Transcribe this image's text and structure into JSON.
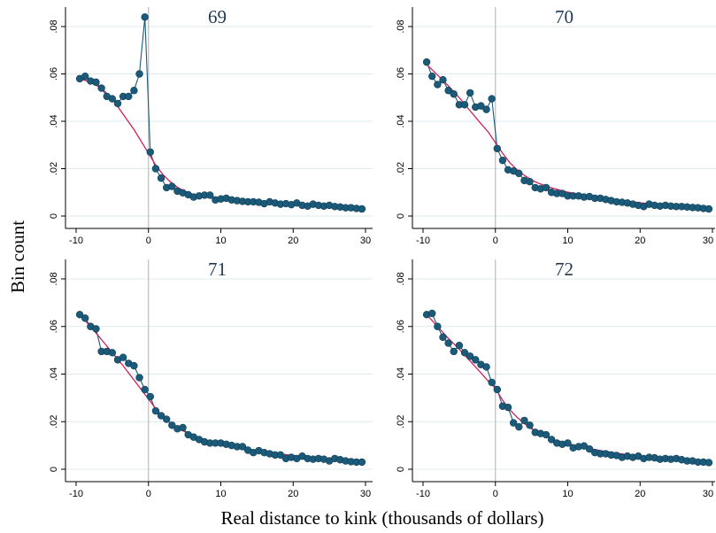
{
  "figure": {
    "xlabel": "Real distance to kink (thousands of dollars)",
    "ylabel": "Bin count",
    "colors": {
      "data": "#1c5a7a",
      "fit": "#d0205a",
      "kink": "#bdbdbd",
      "grid": "#dfe8ec",
      "title": "#1f3b57"
    }
  },
  "chart_data": [
    {
      "type": "line",
      "title": "69",
      "xlim": [
        -10,
        30
      ],
      "ylim": [
        0,
        0.08
      ],
      "xticks": [
        "-10",
        "0",
        "10",
        "20",
        "30"
      ],
      "yticks": [
        "0",
        ".02",
        ".04",
        ".06",
        ".08"
      ],
      "kink_x": 0,
      "series": [
        {
          "kind": "scatter-connected",
          "x": [
            -9.5,
            -8.75,
            -8,
            -7.25,
            -6.5,
            -5.75,
            -5,
            -4.25,
            -3.5,
            -2.75,
            -2,
            -1.25,
            -0.5,
            0.25,
            1,
            1.75,
            2.5,
            3.25,
            4,
            4.75,
            5.5,
            6.25,
            7,
            7.75,
            8.5,
            9.25,
            10,
            10.75,
            11.5,
            12.25,
            13,
            13.75,
            14.5,
            15.25,
            16,
            16.75,
            17.5,
            18.25,
            19,
            19.75,
            20.5,
            21.25,
            22,
            22.75,
            23.5,
            24.25,
            25,
            25.75,
            26.5,
            27.25,
            28,
            28.75,
            29.5
          ],
          "y": [
            0.058,
            0.059,
            0.057,
            0.0565,
            0.054,
            0.0505,
            0.0495,
            0.0475,
            0.0505,
            0.0505,
            0.053,
            0.06,
            0.084,
            0.027,
            0.02,
            0.016,
            0.012,
            0.0125,
            0.0105,
            0.0098,
            0.009,
            0.008,
            0.0085,
            0.0088,
            0.0088,
            0.0068,
            0.0072,
            0.0075,
            0.0068,
            0.0065,
            0.0062,
            0.006,
            0.006,
            0.0058,
            0.0052,
            0.006,
            0.0055,
            0.005,
            0.0052,
            0.0048,
            0.0055,
            0.0045,
            0.0042,
            0.005,
            0.0045,
            0.0042,
            0.0045,
            0.004,
            0.0038,
            0.0035,
            0.0035,
            0.0032,
            0.003
          ]
        },
        {
          "kind": "fit",
          "x": [
            -9.5,
            -8,
            -6.5,
            -5,
            -3.5,
            -2,
            -1,
            0,
            1,
            2,
            3,
            4,
            5,
            6,
            8,
            10,
            12,
            14,
            16,
            18,
            20,
            22,
            24,
            26,
            28,
            29.5
          ],
          "y": [
            0.058,
            0.0565,
            0.054,
            0.0495,
            0.043,
            0.0365,
            0.0315,
            0.0265,
            0.0215,
            0.0175,
            0.0145,
            0.0122,
            0.0105,
            0.0093,
            0.0079,
            0.0071,
            0.0066,
            0.0061,
            0.0056,
            0.0051,
            0.0047,
            0.0043,
            0.0039,
            0.0035,
            0.0032,
            0.003
          ]
        }
      ]
    },
    {
      "type": "line",
      "title": "70",
      "xlim": [
        -10,
        30
      ],
      "ylim": [
        0,
        0.08
      ],
      "xticks": [
        "-10",
        "0",
        "10",
        "20",
        "30"
      ],
      "yticks": [
        "0",
        ".02",
        ".04",
        ".06",
        ".08"
      ],
      "kink_x": 0,
      "series": [
        {
          "kind": "scatter-connected",
          "x": [
            -9.5,
            -8.75,
            -8,
            -7.25,
            -6.5,
            -5.75,
            -5,
            -4.25,
            -3.5,
            -2.75,
            -2,
            -1.25,
            -0.5,
            0.25,
            1,
            1.75,
            2.5,
            3.25,
            4,
            4.75,
            5.5,
            6.25,
            7,
            7.75,
            8.5,
            9.25,
            10,
            10.75,
            11.5,
            12.25,
            13,
            13.75,
            14.5,
            15.25,
            16,
            16.75,
            17.5,
            18.25,
            19,
            19.75,
            20.5,
            21.25,
            22,
            22.75,
            23.5,
            24.25,
            25,
            25.75,
            26.5,
            27.25,
            28,
            28.75,
            29.5
          ],
          "y": [
            0.065,
            0.059,
            0.0555,
            0.0575,
            0.053,
            0.0515,
            0.047,
            0.047,
            0.052,
            0.046,
            0.0465,
            0.045,
            0.0495,
            0.0285,
            0.0235,
            0.0195,
            0.019,
            0.018,
            0.015,
            0.0145,
            0.012,
            0.0115,
            0.012,
            0.01,
            0.0095,
            0.0095,
            0.0085,
            0.0085,
            0.0085,
            0.008,
            0.0082,
            0.0075,
            0.0075,
            0.007,
            0.0065,
            0.006,
            0.0058,
            0.0055,
            0.005,
            0.0045,
            0.004,
            0.005,
            0.0045,
            0.0042,
            0.0045,
            0.0042,
            0.004,
            0.004,
            0.0038,
            0.0036,
            0.0035,
            0.0032,
            0.003
          ]
        },
        {
          "kind": "fit",
          "x": [
            -9.5,
            -8,
            -6.5,
            -5,
            -3.5,
            -2,
            -1,
            0,
            1,
            2,
            3,
            4,
            5,
            6,
            8,
            10,
            12,
            14,
            16,
            18,
            20,
            22,
            24,
            26,
            28,
            29.5
          ],
          "y": [
            0.064,
            0.0595,
            0.055,
            0.05,
            0.0445,
            0.039,
            0.0355,
            0.031,
            0.0265,
            0.0225,
            0.0195,
            0.0172,
            0.0152,
            0.0138,
            0.0117,
            0.0101,
            0.0089,
            0.0079,
            0.0071,
            0.0063,
            0.0056,
            0.005,
            0.0045,
            0.0041,
            0.0037,
            0.0034
          ]
        }
      ]
    },
    {
      "type": "line",
      "title": "71",
      "xlim": [
        -10,
        30
      ],
      "ylim": [
        0,
        0.08
      ],
      "xticks": [
        "-10",
        "0",
        "10",
        "20",
        "30"
      ],
      "yticks": [
        "0",
        ".02",
        ".04",
        ".06",
        ".08"
      ],
      "kink_x": 0,
      "series": [
        {
          "kind": "scatter-connected",
          "x": [
            -9.5,
            -8.75,
            -8,
            -7.25,
            -6.5,
            -5.75,
            -5,
            -4.25,
            -3.5,
            -2.75,
            -2,
            -1.25,
            -0.5,
            0.25,
            1,
            1.75,
            2.5,
            3.25,
            4,
            4.75,
            5.5,
            6.25,
            7,
            7.75,
            8.5,
            9.25,
            10,
            10.75,
            11.5,
            12.25,
            13,
            13.75,
            14.5,
            15.25,
            16,
            16.75,
            17.5,
            18.25,
            19,
            19.75,
            20.5,
            21.25,
            22,
            22.75,
            23.5,
            24.25,
            25,
            25.75,
            26.5,
            27.25,
            28,
            28.75,
            29.5
          ],
          "y": [
            0.065,
            0.0635,
            0.06,
            0.059,
            0.0495,
            0.0495,
            0.049,
            0.046,
            0.047,
            0.0445,
            0.0435,
            0.0385,
            0.0335,
            0.0305,
            0.0245,
            0.0225,
            0.021,
            0.0185,
            0.017,
            0.0175,
            0.0145,
            0.0135,
            0.0125,
            0.0115,
            0.011,
            0.011,
            0.011,
            0.0105,
            0.01,
            0.0095,
            0.0095,
            0.008,
            0.007,
            0.0078,
            0.007,
            0.0065,
            0.006,
            0.006,
            0.0045,
            0.005,
            0.0045,
            0.0055,
            0.0045,
            0.0042,
            0.0045,
            0.0042,
            0.0035,
            0.0045,
            0.004,
            0.0035,
            0.0032,
            0.003,
            0.003
          ]
        },
        {
          "kind": "fit",
          "x": [
            -9.5,
            -8,
            -6.5,
            -5,
            -3.5,
            -2,
            -1,
            0,
            1,
            2,
            3,
            4,
            5,
            6,
            8,
            10,
            12,
            14,
            16,
            18,
            20,
            22,
            24,
            26,
            28,
            29.5
          ],
          "y": [
            0.065,
            0.06,
            0.0545,
            0.049,
            0.0435,
            0.0375,
            0.0335,
            0.0295,
            0.0255,
            0.0222,
            0.0195,
            0.0175,
            0.0158,
            0.0143,
            0.0122,
            0.0107,
            0.0094,
            0.0083,
            0.0073,
            0.0065,
            0.0058,
            0.0051,
            0.0045,
            0.004,
            0.0036,
            0.0033
          ]
        }
      ]
    },
    {
      "type": "line",
      "title": "72",
      "xlim": [
        -10,
        30
      ],
      "ylim": [
        0,
        0.08
      ],
      "xticks": [
        "-10",
        "0",
        "10",
        "20",
        "30"
      ],
      "yticks": [
        "0",
        ".02",
        ".04",
        ".06",
        ".08"
      ],
      "kink_x": 0,
      "series": [
        {
          "kind": "scatter-connected",
          "x": [
            -9.5,
            -8.75,
            -8,
            -7.25,
            -6.5,
            -5.75,
            -5,
            -4.25,
            -3.5,
            -2.75,
            -2,
            -1.25,
            -0.5,
            0.25,
            1,
            1.75,
            2.5,
            3.25,
            4,
            4.75,
            5.5,
            6.25,
            7,
            7.75,
            8.5,
            9.25,
            10,
            10.75,
            11.5,
            12.25,
            13,
            13.75,
            14.5,
            15.25,
            16,
            16.75,
            17.5,
            18.25,
            19,
            19.75,
            20.5,
            21.25,
            22,
            22.75,
            23.5,
            24.25,
            25,
            25.75,
            26.5,
            27.25,
            28,
            28.75,
            29.5
          ],
          "y": [
            0.065,
            0.0655,
            0.06,
            0.0555,
            0.053,
            0.0495,
            0.052,
            0.049,
            0.0475,
            0.046,
            0.044,
            0.043,
            0.0365,
            0.0335,
            0.0265,
            0.026,
            0.0195,
            0.0178,
            0.0205,
            0.0185,
            0.0155,
            0.015,
            0.0145,
            0.0125,
            0.011,
            0.0105,
            0.011,
            0.009,
            0.0095,
            0.0098,
            0.0085,
            0.007,
            0.0065,
            0.0065,
            0.006,
            0.0058,
            0.005,
            0.0055,
            0.005,
            0.0055,
            0.0045,
            0.005,
            0.0048,
            0.0042,
            0.0045,
            0.0042,
            0.0045,
            0.004,
            0.0035,
            0.0035,
            0.003,
            0.003,
            0.0028
          ]
        },
        {
          "kind": "fit",
          "x": [
            -9.5,
            -8,
            -6.5,
            -5,
            -3.5,
            -2,
            -1,
            0,
            1,
            2,
            3,
            4,
            5,
            6,
            8,
            10,
            12,
            14,
            16,
            18,
            20,
            22,
            24,
            26,
            28,
            29.5
          ],
          "y": [
            0.065,
            0.06,
            0.055,
            0.0505,
            0.0455,
            0.0405,
            0.037,
            0.034,
            0.029,
            0.025,
            0.0218,
            0.0192,
            0.017,
            0.0152,
            0.0125,
            0.0107,
            0.0093,
            0.0081,
            0.0071,
            0.0062,
            0.0055,
            0.0048,
            0.0042,
            0.0037,
            0.0033,
            0.0031
          ]
        }
      ]
    }
  ]
}
